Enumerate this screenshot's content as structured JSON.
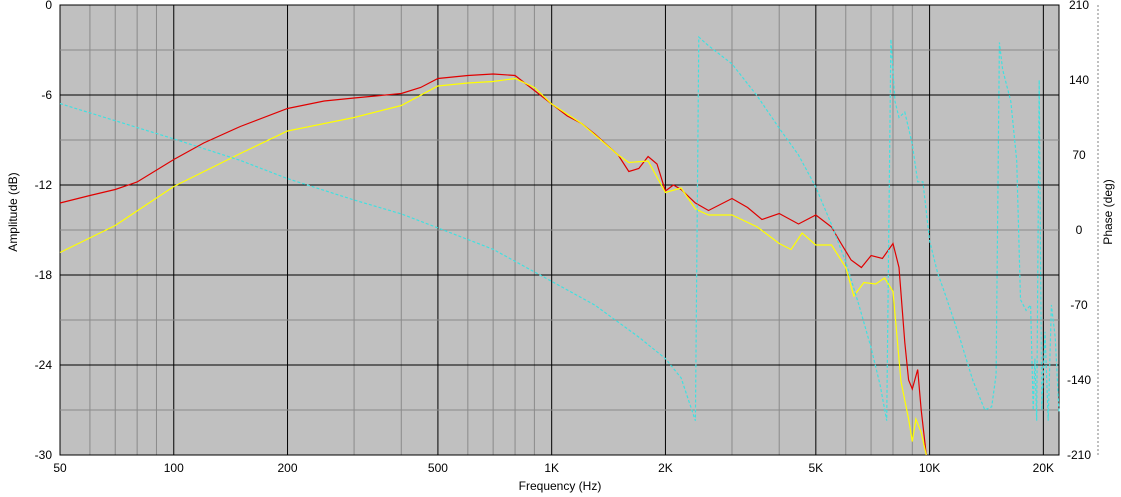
{
  "chart_data": {
    "type": "line",
    "title": "",
    "xlabel": "Frequency (Hz)",
    "ylabel": "Amplitude (dB)",
    "y2label": "Phase (deg)",
    "x_scale": "log",
    "xlim": [
      50,
      22000
    ],
    "ylim": [
      -30,
      0
    ],
    "y2lim": [
      -210,
      210
    ],
    "grid": true,
    "background": "#c0c0c0",
    "x_ticks": [
      {
        "value": 50,
        "label": "50"
      },
      {
        "value": 100,
        "label": "100"
      },
      {
        "value": 200,
        "label": "200"
      },
      {
        "value": 500,
        "label": "500"
      },
      {
        "value": 1000,
        "label": "1K"
      },
      {
        "value": 2000,
        "label": "2K"
      },
      {
        "value": 5000,
        "label": "5K"
      },
      {
        "value": 10000,
        "label": "10K"
      },
      {
        "value": 20000,
        "label": "20K"
      }
    ],
    "y_ticks": [
      {
        "value": 0,
        "label": "0"
      },
      {
        "value": -6,
        "label": "-6"
      },
      {
        "value": -12,
        "label": "-12"
      },
      {
        "value": -18,
        "label": "-18"
      },
      {
        "value": -24,
        "label": "-24"
      },
      {
        "value": -30,
        "label": "-30"
      }
    ],
    "y2_ticks": [
      {
        "value": 210,
        "label": "210"
      },
      {
        "value": 140,
        "label": "140"
      },
      {
        "value": 70,
        "label": "70"
      },
      {
        "value": 0,
        "label": "0"
      },
      {
        "value": -70,
        "label": "-70"
      },
      {
        "value": -140,
        "label": "-140"
      },
      {
        "value": -210,
        "label": "-210"
      }
    ],
    "series": [
      {
        "color": "#e00000",
        "axis": "left",
        "dashed": false,
        "x": [
          50,
          60,
          70,
          80,
          100,
          120,
          150,
          200,
          250,
          300,
          400,
          450,
          500,
          600,
          700,
          800,
          900,
          1000,
          1100,
          1200,
          1300,
          1500,
          1600,
          1700,
          1800,
          1900,
          2000,
          2100,
          2200,
          2400,
          2600,
          3000,
          3300,
          3600,
          4000,
          4500,
          5000,
          5500,
          5800,
          6200,
          6600,
          7000,
          7500,
          8000,
          8300,
          8600,
          8800,
          9000,
          9300,
          9500,
          9800
        ],
        "y": [
          -13.2,
          -12.7,
          -12.3,
          -11.8,
          -10.3,
          -9.2,
          -8.1,
          -6.9,
          -6.4,
          -6.2,
          -5.9,
          -5.5,
          -4.9,
          -4.7,
          -4.6,
          -4.7,
          -5.7,
          -6.6,
          -7.4,
          -7.9,
          -8.6,
          -10.0,
          -11.1,
          -10.9,
          -10.1,
          -10.6,
          -12.4,
          -12.0,
          -12.3,
          -13.2,
          -13.7,
          -12.9,
          -13.5,
          -14.3,
          -13.9,
          -14.6,
          -14.0,
          -14.8,
          -15.8,
          -17.0,
          -17.5,
          -16.7,
          -16.9,
          -15.9,
          -17.5,
          -22.5,
          -25.0,
          -25.6,
          -24.3,
          -27.0,
          -30.0
        ]
      },
      {
        "color": "#ffff00",
        "axis": "left",
        "dashed": false,
        "x": [
          50,
          70,
          100,
          150,
          200,
          300,
          400,
          500,
          600,
          700,
          800,
          900,
          1000,
          1200,
          1500,
          1600,
          1800,
          2000,
          2200,
          2400,
          2600,
          3000,
          3500,
          4000,
          4300,
          4600,
          5000,
          5500,
          6000,
          6300,
          6700,
          7200,
          7600,
          8000,
          8400,
          8800,
          9000,
          9200,
          9500,
          9800
        ],
        "y": [
          -16.5,
          -14.7,
          -12.1,
          -9.9,
          -8.4,
          -7.5,
          -6.7,
          -5.4,
          -5.2,
          -5.1,
          -4.9,
          -5.5,
          -6.6,
          -7.9,
          -10.0,
          -10.5,
          -10.4,
          -12.5,
          -12.2,
          -13.6,
          -14.0,
          -14.0,
          -14.8,
          -15.9,
          -16.3,
          -15.2,
          -16.0,
          -16.0,
          -17.5,
          -19.4,
          -18.5,
          -18.6,
          -18.2,
          -19.1,
          -25.1,
          -27.6,
          -29.1,
          -27.6,
          -28.5,
          -30.0
        ]
      },
      {
        "color": "#40e0e0",
        "axis": "right",
        "dashed": true,
        "x": [
          50,
          70,
          100,
          150,
          200,
          300,
          400,
          500,
          700,
          1000,
          1300,
          1700,
          2000,
          2200,
          2400,
          2450,
          2600,
          3000,
          3500,
          4000,
          4500,
          5000,
          5500,
          6000,
          6500,
          7000,
          7400,
          7700,
          7900,
          8100,
          8300,
          8600,
          9000,
          9300,
          9600,
          10000,
          10500,
          11000,
          12000,
          13000,
          14000,
          14600,
          15000,
          15300,
          15600,
          16000,
          16400,
          17000,
          17400,
          18000,
          18500,
          18800,
          19000,
          19200,
          19500,
          19800,
          20200,
          20600,
          21000,
          21500,
          22000
        ],
        "y": [
          118,
          102,
          85,
          65,
          48,
          28,
          15,
          2,
          -18,
          -48,
          -70,
          -100,
          -120,
          -138,
          -178,
          180,
          172,
          155,
          125,
          95,
          70,
          40,
          5,
          -30,
          -70,
          -110,
          -145,
          -178,
          178,
          120,
          105,
          110,
          80,
          45,
          45,
          -10,
          -40,
          -60,
          -100,
          -140,
          -168,
          -165,
          -135,
          175,
          150,
          135,
          120,
          65,
          -65,
          -75,
          -70,
          -168,
          -120,
          -178,
          140,
          -168,
          -95,
          -178,
          -70,
          -100,
          -170
        ]
      }
    ]
  }
}
